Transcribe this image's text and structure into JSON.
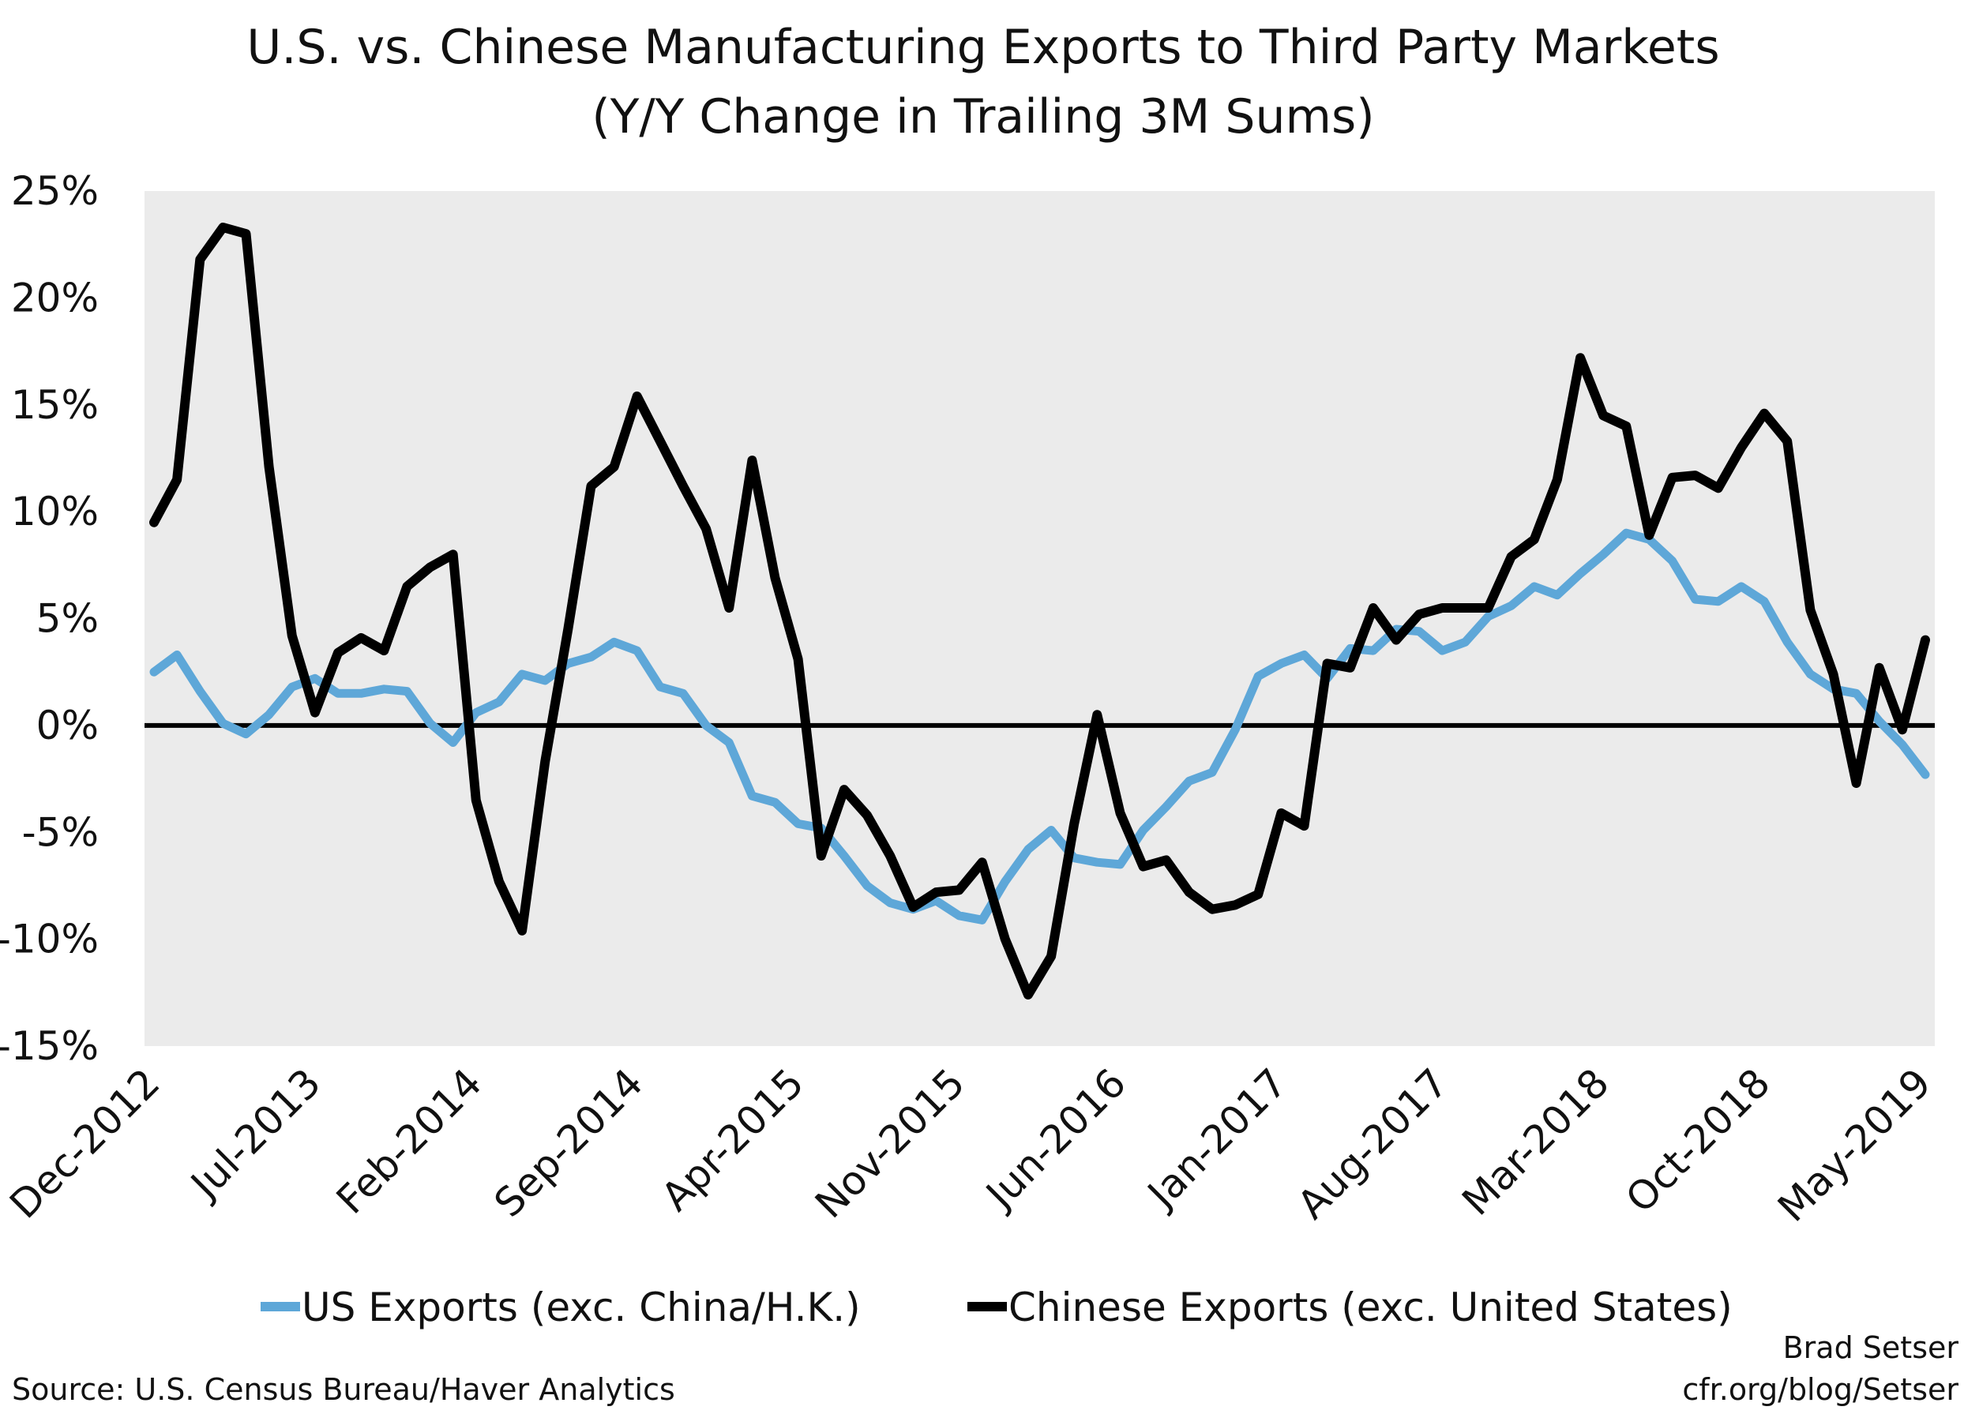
{
  "chart_data": {
    "type": "line",
    "title": "U.S. vs. Chinese Manufacturing Exports to Third Party Markets",
    "subtitle": "(Y/Y Change in Trailing 3M Sums)",
    "xlabel": "",
    "ylabel": "",
    "x_start": "Dec-2012",
    "x_end": "May-2019",
    "x_frequency": "monthly",
    "x_tick_labels": [
      "Dec-2012",
      "Jul-2013",
      "Feb-2014",
      "Sep-2014",
      "Apr-2015",
      "Nov-2015",
      "Jun-2016",
      "Jan-2017",
      "Aug-2017",
      "Mar-2018",
      "Oct-2018",
      "May-2019"
    ],
    "y_tick_labels": [
      "25%",
      "20%",
      "15%",
      "10%",
      "5%",
      "0%",
      "-5%",
      "-10%",
      "-15%"
    ],
    "ylim": [
      -15,
      25
    ],
    "y_unit": "%",
    "grid": false,
    "legend_placement": "bottom",
    "background": "hatched light gray",
    "series": [
      {
        "name": "US Exports (exc. China/H.K.)",
        "color": "#5ea7d8",
        "values": [
          2.5,
          3.3,
          1.6,
          0.1,
          -0.4,
          0.5,
          1.8,
          2.2,
          1.5,
          1.5,
          1.7,
          1.6,
          0.1,
          -0.8,
          0.6,
          1.1,
          2.4,
          2.1,
          2.9,
          3.2,
          3.9,
          3.5,
          1.8,
          1.5,
          0.0,
          -0.8,
          -3.3,
          -3.6,
          -4.6,
          -4.8,
          -6.1,
          -7.5,
          -8.3,
          -8.6,
          -8.2,
          -8.9,
          -9.1,
          -7.3,
          -5.8,
          -4.9,
          -6.2,
          -6.4,
          -6.5,
          -4.9,
          -3.8,
          -2.6,
          -2.2,
          -0.2,
          2.3,
          2.9,
          3.3,
          2.2,
          3.6,
          3.5,
          4.5,
          4.4,
          3.5,
          3.9,
          5.1,
          5.6,
          6.5,
          6.1,
          7.1,
          8.0,
          9.0,
          8.7,
          7.7,
          5.9,
          5.8,
          6.5,
          5.8,
          3.9,
          2.4,
          1.7,
          1.5,
          0.2,
          -0.9,
          -2.3
        ]
      },
      {
        "name": "Chinese Exports (exc. United States)",
        "color": "#000000",
        "values": [
          9.5,
          11.5,
          21.8,
          23.3,
          23.0,
          12.1,
          4.2,
          0.6,
          3.4,
          4.1,
          3.5,
          6.5,
          7.4,
          8.0,
          -3.5,
          -7.3,
          -9.6,
          -1.7,
          4.5,
          11.2,
          12.1,
          15.4,
          13.3,
          11.2,
          9.2,
          5.5,
          12.4,
          6.9,
          3.1,
          -6.1,
          -3.0,
          -4.2,
          -6.1,
          -8.5,
          -7.8,
          -7.7,
          -6.4,
          -10.0,
          -12.6,
          -10.8,
          -4.6,
          0.5,
          -4.1,
          -6.6,
          -6.3,
          -7.8,
          -8.6,
          -8.4,
          -7.9,
          -4.1,
          -4.7,
          2.9,
          2.7,
          5.5,
          4.0,
          5.2,
          5.5,
          5.5,
          5.5,
          7.9,
          8.7,
          11.5,
          17.2,
          14.5,
          14.0,
          8.9,
          11.6,
          11.7,
          11.1,
          13.0,
          14.6,
          13.3,
          5.4,
          2.4,
          -2.7,
          2.7,
          -0.2,
          4.0
        ]
      }
    ]
  },
  "footer": {
    "source": "Source: U.S. Census Bureau/Haver Analytics",
    "author": "Brad Setser",
    "site": "cfr.org/blog/Setser"
  }
}
